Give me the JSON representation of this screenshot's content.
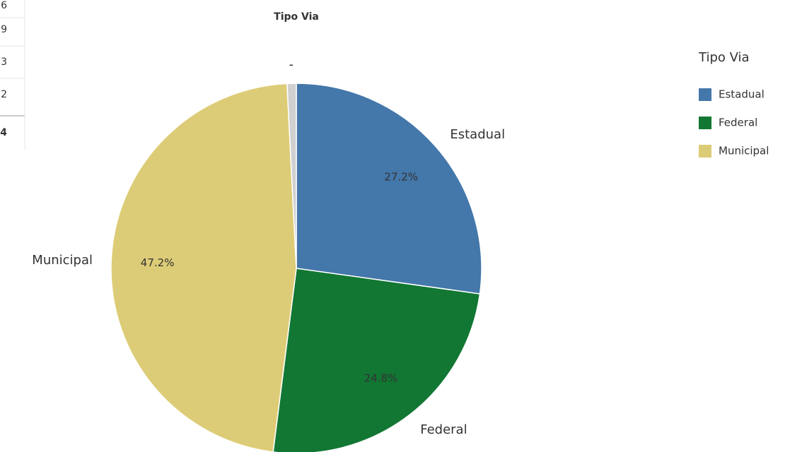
{
  "side_table": {
    "cells": [
      "6",
      "9",
      "3",
      "2",
      "4"
    ]
  },
  "chart_data": {
    "type": "pie",
    "title": "Tipo Via",
    "categories": [
      "Estadual",
      "Federal",
      "Municipal",
      "-"
    ],
    "values": [
      27.2,
      24.8,
      47.2,
      0.8
    ],
    "value_labels": [
      "27.2%",
      "24.8%",
      "47.2%",
      null
    ],
    "colors": [
      "#4477aa",
      "#117733",
      "#ddcc77",
      "#d0d0d0"
    ],
    "legend": {
      "title": "Tipo Via",
      "position": "right",
      "items": [
        "Estadual",
        "Federal",
        "Municipal"
      ]
    }
  }
}
